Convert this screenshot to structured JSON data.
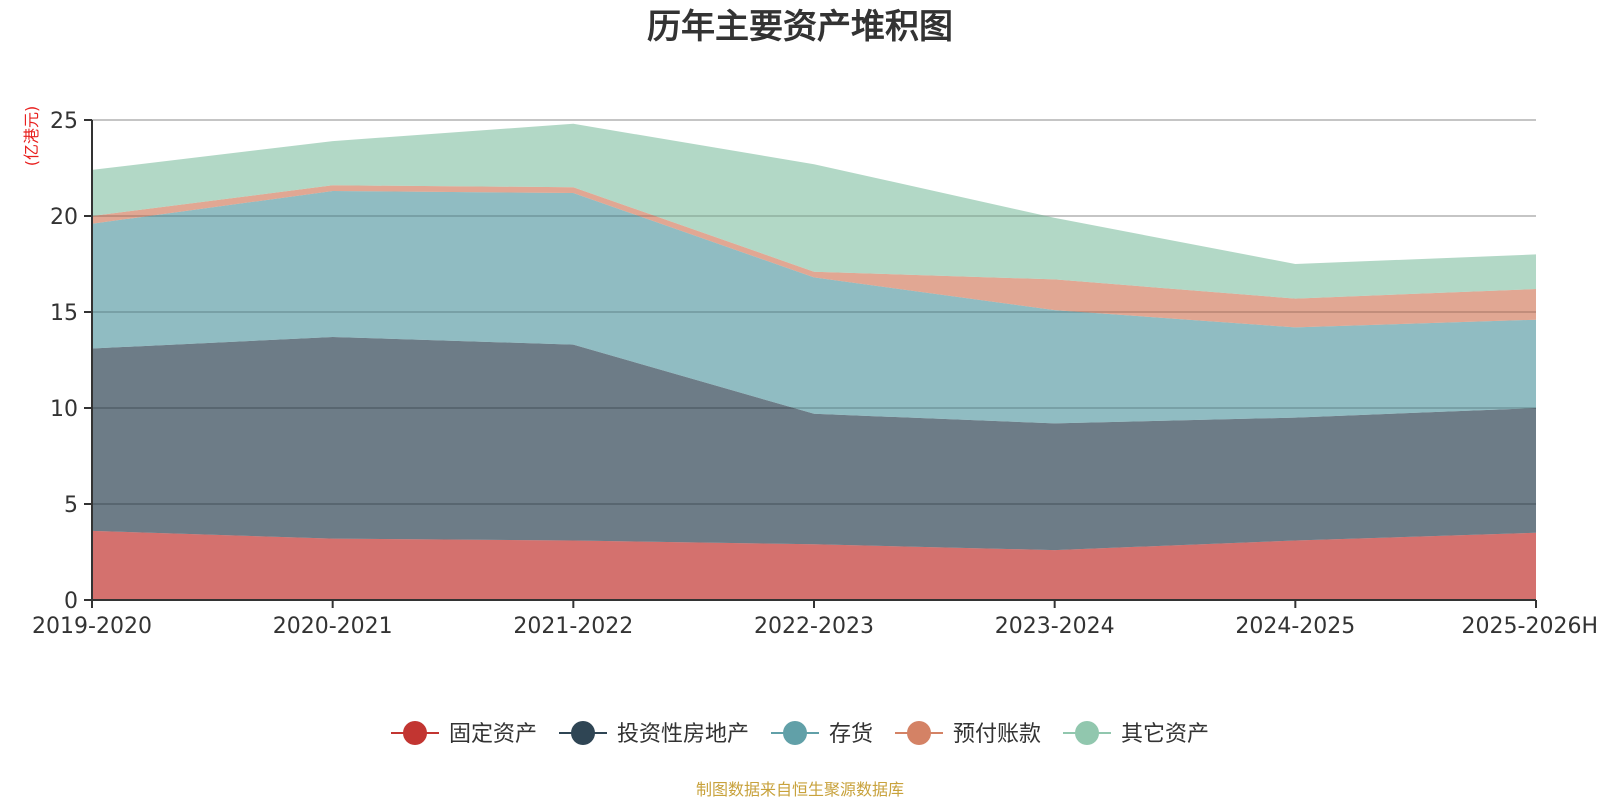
{
  "chart_data": {
    "type": "area",
    "stacked": true,
    "title": "历年主要资产堆积图",
    "ylabel": "(亿港元)",
    "ylim": [
      0,
      25
    ],
    "yticks": [
      0,
      5,
      10,
      15,
      20,
      25
    ],
    "grid": true,
    "legend_position": "bottom",
    "categories": [
      "2019-2020",
      "2020-2021",
      "2021-2022",
      "2022-2023",
      "2023-2024",
      "2024-2025",
      "2025-2026H"
    ],
    "series": [
      {
        "name": "固定资产",
        "color": "#c23531",
        "values": [
          3.6,
          3.2,
          3.1,
          2.9,
          2.6,
          3.1,
          3.5
        ]
      },
      {
        "name": "投资性房地产",
        "color": "#2f4554",
        "values": [
          9.5,
          10.5,
          10.2,
          6.8,
          6.6,
          6.4,
          6.5
        ]
      },
      {
        "name": "存货",
        "color": "#61a0a8",
        "values": [
          6.5,
          7.6,
          7.9,
          7.1,
          5.9,
          4.7,
          4.6
        ]
      },
      {
        "name": "预付账款",
        "color": "#d48265",
        "values": [
          0.4,
          0.3,
          0.3,
          0.3,
          1.6,
          1.5,
          1.6
        ]
      },
      {
        "name": "其它资产",
        "color": "#91c7ae",
        "values": [
          2.4,
          2.3,
          3.3,
          5.6,
          3.2,
          1.8,
          1.8
        ]
      }
    ],
    "source_note": "制图数据来自恒生聚源数据库"
  },
  "colors": {
    "unit_label": "#e8201e",
    "source_note": "#c8a23c",
    "axis": "#333333",
    "grid": "#cccccc"
  }
}
